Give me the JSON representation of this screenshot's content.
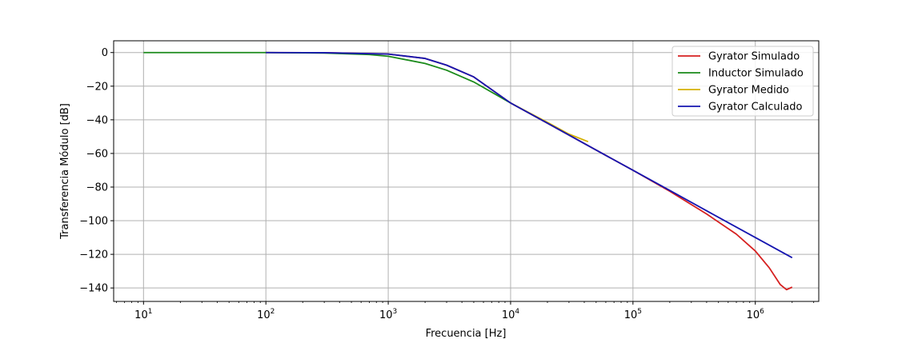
{
  "chart_data": {
    "type": "line",
    "xscale": "log",
    "xlabel": "Frecuencia [Hz]",
    "ylabel": "Transferencia Módulo [dB]",
    "xlim": [
      5.7,
      3300000
    ],
    "ylim": [
      -148,
      7
    ],
    "x_ticks": [
      {
        "value": 10,
        "base": "10",
        "exp": "1"
      },
      {
        "value": 100,
        "base": "10",
        "exp": "2"
      },
      {
        "value": 1000,
        "base": "10",
        "exp": "3"
      },
      {
        "value": 10000,
        "base": "10",
        "exp": "4"
      },
      {
        "value": 100000,
        "base": "10",
        "exp": "5"
      },
      {
        "value": 1000000,
        "base": "10",
        "exp": "6"
      }
    ],
    "y_ticks": [
      {
        "value": 0,
        "label": "0"
      },
      {
        "value": -20,
        "label": "−20"
      },
      {
        "value": -40,
        "label": "−40"
      },
      {
        "value": -60,
        "label": "−60"
      },
      {
        "value": -80,
        "label": "−80"
      },
      {
        "value": -100,
        "label": "−100"
      },
      {
        "value": -120,
        "label": "−120"
      },
      {
        "value": -140,
        "label": "−140"
      }
    ],
    "grid": true,
    "legend": "top-right",
    "series": [
      {
        "name": "Gyrator Simulado",
        "color": "#d62020",
        "points": [
          [
            100,
            0
          ],
          [
            300,
            -0.1
          ],
          [
            1000,
            -0.9
          ],
          [
            2000,
            -3.5
          ],
          [
            3000,
            -7.5
          ],
          [
            5000,
            -14.5
          ],
          [
            10000,
            -30
          ],
          [
            20000,
            -42
          ],
          [
            50000,
            -58
          ],
          [
            100000,
            -70
          ],
          [
            200000,
            -82.5
          ],
          [
            400000,
            -96
          ],
          [
            700000,
            -108
          ],
          [
            1000000,
            -118
          ],
          [
            1300000,
            -128
          ],
          [
            1600000,
            -138
          ],
          [
            1800000,
            -141
          ],
          [
            2000000,
            -139.5
          ]
        ]
      },
      {
        "name": "Inductor Simulado",
        "color": "#1a8a1a",
        "points": [
          [
            10,
            0
          ],
          [
            100,
            0
          ],
          [
            300,
            -0.3
          ],
          [
            700,
            -1.2
          ],
          [
            1000,
            -2.2
          ],
          [
            2000,
            -6.5
          ],
          [
            3000,
            -10.5
          ],
          [
            5000,
            -17.5
          ],
          [
            10000,
            -30
          ]
        ]
      },
      {
        "name": "Gyrator Medido",
        "color": "#d4b000",
        "points": [
          [
            10000,
            -30
          ],
          [
            20000,
            -41.5
          ],
          [
            30000,
            -48.5
          ],
          [
            43000,
            -53
          ]
        ]
      },
      {
        "name": "Gyrator Calculado",
        "color": "#1515b0",
        "points": [
          [
            100,
            0
          ],
          [
            300,
            -0.1
          ],
          [
            1000,
            -0.9
          ],
          [
            2000,
            -3.5
          ],
          [
            3000,
            -7.5
          ],
          [
            5000,
            -14.5
          ],
          [
            10000,
            -30
          ],
          [
            20000,
            -42
          ],
          [
            50000,
            -58
          ],
          [
            100000,
            -70
          ],
          [
            200000,
            -82
          ],
          [
            500000,
            -98
          ],
          [
            1000000,
            -110
          ],
          [
            2000000,
            -122
          ]
        ]
      }
    ]
  }
}
